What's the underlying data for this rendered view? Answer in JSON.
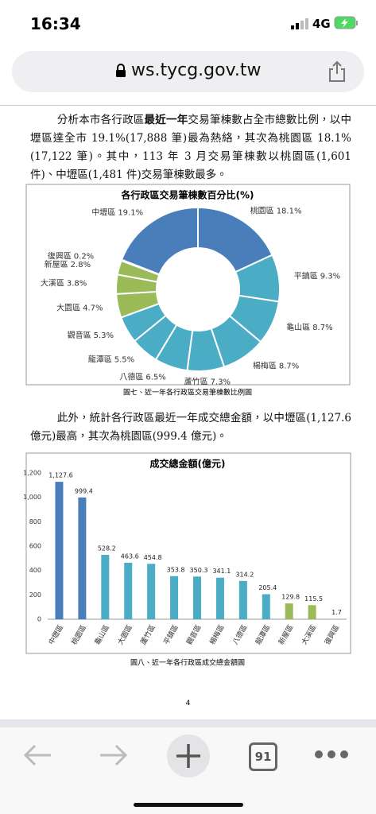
{
  "status_bar": {
    "time": "16:34",
    "network": "4G"
  },
  "url": "ws.tycg.gov.tw",
  "paragraphs": [
    {
      "before": "分析本市各行政區",
      "bold": "最近一年",
      "after": "交易筆棟數占全市總數比例，以中壢區達全市 19.1%(17,888 筆)最為熱絡，其次為桃園區 18.1%(17,122 筆)。其中，113 年 3 月交易筆棟數以桃園區(1,601 件)、中壢區(1,481 件)交易筆棟數最多。"
    },
    {
      "before": "此外，統計各行政區最近一年成交總金額，以中壢區(1,127.6 億元)最高，其次為桃園區(999.4 億元)。"
    }
  ],
  "chart_data": [
    {
      "type": "pie",
      "title": "各行政區交易筆棟數百分比(%)",
      "categories": [
        "桃園區",
        "平鎮區",
        "龜山區",
        "楊梅區",
        "蘆竹區",
        "八德區",
        "龍潭區",
        "觀音區",
        "大園區",
        "大溪區",
        "新屋區",
        "復興區",
        "中壢區"
      ],
      "values": [
        18.1,
        9.3,
        8.7,
        8.7,
        7.3,
        6.5,
        5.5,
        5.3,
        4.7,
        3.8,
        2.8,
        0.2,
        19.1
      ],
      "value_labels": [
        "18.1%",
        "9.3%",
        "8.7%",
        "8.7%",
        "7.3%",
        "6.5%",
        "5.5%",
        "5.3%",
        "4.7%",
        "3.8%",
        "2.8%",
        "0.2%",
        "19.1%"
      ],
      "colors": [
        "#4a7ebb",
        "#4bacc6",
        "#4bacc6",
        "#4bacc6",
        "#4bacc6",
        "#4bacc6",
        "#4bacc6",
        "#4bacc6",
        "#9bbb59",
        "#9bbb59",
        "#9bbb59",
        "#9bbb59",
        "#4a7ebb"
      ],
      "caption": "圖七、近一年各行政區交易筆棟數比例圖"
    },
    {
      "type": "bar",
      "title": "成交總金額(億元)",
      "categories": [
        "中壢區",
        "桃園區",
        "龜山區",
        "大園區",
        "蘆竹區",
        "平鎮區",
        "觀音區",
        "楊梅區",
        "八德區",
        "龍潭區",
        "新屋區",
        "大溪區",
        "復興區"
      ],
      "values": [
        1127.6,
        999.4,
        528.2,
        463.6,
        454.8,
        353.8,
        350.3,
        341.1,
        314.2,
        205.4,
        129.8,
        115.5,
        1.7
      ],
      "value_labels": [
        "1,127.6",
        "999.4",
        "528.2",
        "463.6",
        "454.8",
        "353.8",
        "350.3",
        "341.1",
        "314.2",
        "205.4",
        "129.8",
        "115.5",
        "1.7"
      ],
      "colors": [
        "#4a7ebb",
        "#4a7ebb",
        "#4bacc6",
        "#4bacc6",
        "#4bacc6",
        "#4bacc6",
        "#4bacc6",
        "#4bacc6",
        "#4bacc6",
        "#4bacc6",
        "#9bbb59",
        "#9bbb59",
        "#9bbb59"
      ],
      "ylim": [
        0,
        1200
      ],
      "yticks": [
        0,
        200,
        400,
        600,
        800,
        {
          "value": 1000,
          "label": "1,000"
        },
        {
          "value": 1200,
          "label": "1,200"
        }
      ],
      "grid": false,
      "caption": "圖八、近一年各行政區成交總金額圖"
    }
  ],
  "page_number": "4",
  "tab_count": "91"
}
